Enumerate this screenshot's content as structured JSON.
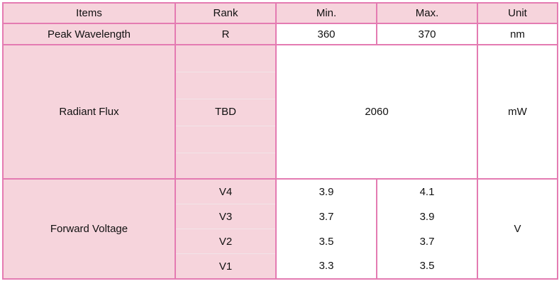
{
  "table": {
    "header": [
      "Items",
      "Rank",
      "Min.",
      "Max.",
      "Unit"
    ],
    "peak_wavelength": {
      "item": "Peak Wavelength",
      "rank": "R",
      "min": "360",
      "max": "370",
      "unit": "nm"
    },
    "radiant_flux": {
      "item": "Radiant Flux",
      "rank": "TBD",
      "value": "2060",
      "unit": "mW"
    },
    "forward_voltage": {
      "item": "Forward Voltage",
      "unit": "V",
      "rows": [
        [
          "V4",
          "3.9",
          "4.1"
        ],
        [
          "V3",
          "3.7",
          "3.9"
        ],
        [
          "V2",
          "3.5",
          "3.7"
        ],
        [
          "V1",
          "3.3",
          "3.5"
        ]
      ]
    }
  }
}
